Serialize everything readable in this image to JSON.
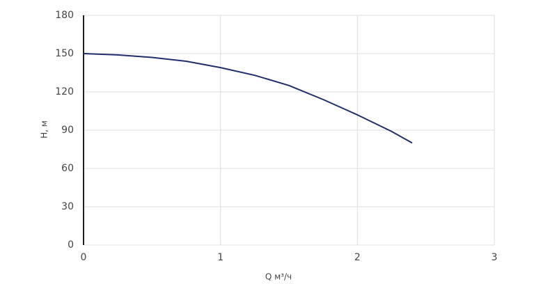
{
  "chart_data": {
    "type": "line",
    "x_label": "Q м³/ч",
    "y_label": "H, м",
    "series": [
      {
        "color": "#1f2d6b",
        "x": [
          0,
          0.25,
          0.5,
          0.75,
          1,
          1.25,
          1.5,
          1.75,
          2,
          2.25,
          2.4
        ],
        "values": [
          150,
          149,
          147,
          144,
          139,
          133,
          125,
          114,
          102,
          89,
          80
        ]
      }
    ],
    "xlim": [
      0,
      3
    ],
    "xticks": [
      0,
      1,
      2,
      3
    ],
    "ylim": [
      0,
      180
    ],
    "yticks": [
      0,
      30,
      60,
      90,
      120,
      150,
      180
    ],
    "grid": true
  }
}
